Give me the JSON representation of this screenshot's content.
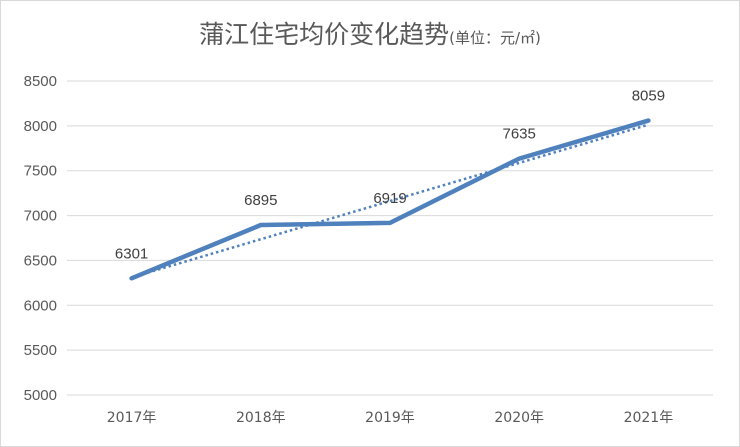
{
  "title": {
    "main": "蒲江住宅均价变化趋势",
    "unit": "(单位：元/㎡)"
  },
  "colors": {
    "series": "#4f81bd",
    "trend": "#4f81bd",
    "grid": "#d9d9d9",
    "text": "#595959"
  },
  "chart_data": {
    "type": "line",
    "title": "蒲江住宅均价变化趋势(单位：元/㎡)",
    "categories": [
      "2017年",
      "2018年",
      "2019年",
      "2020年",
      "2021年"
    ],
    "series": [
      {
        "values": [
          6301,
          6895,
          6919,
          7635,
          8059
        ],
        "data_labels": [
          "6301",
          "6895",
          "6919",
          "7635",
          "8059"
        ]
      }
    ],
    "trendline": {
      "type": "linear",
      "style": "dotted"
    },
    "ylim": [
      5000,
      8500
    ],
    "yticks": [
      5000,
      5500,
      6000,
      6500,
      7000,
      7500,
      8000,
      8500
    ],
    "ytick_labels": [
      "5000",
      "5500",
      "6000",
      "6500",
      "7000",
      "7500",
      "8000",
      "8500"
    ],
    "grid": true,
    "legend": "none"
  }
}
